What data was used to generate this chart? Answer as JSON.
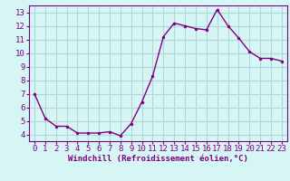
{
  "x": [
    0,
    1,
    2,
    3,
    4,
    5,
    6,
    7,
    8,
    9,
    10,
    11,
    12,
    13,
    14,
    15,
    16,
    17,
    18,
    19,
    20,
    21,
    22,
    23
  ],
  "y": [
    7.0,
    5.2,
    4.6,
    4.6,
    4.1,
    4.1,
    4.1,
    4.2,
    3.9,
    4.8,
    6.4,
    8.3,
    11.2,
    12.2,
    12.0,
    11.8,
    11.7,
    13.2,
    12.0,
    11.1,
    10.1,
    9.6,
    9.6,
    9.4
  ],
  "line_color": "#800080",
  "marker": "o",
  "marker_size": 2.0,
  "bg_color": "#d6f5f5",
  "grid_color": "#b0d8d8",
  "xlabel": "Windchill (Refroidissement éolien,°C)",
  "xlabel_fontsize": 6.5,
  "tick_fontsize": 6.5,
  "ylim": [
    3.5,
    13.5
  ],
  "yticks": [
    4,
    5,
    6,
    7,
    8,
    9,
    10,
    11,
    12,
    13
  ],
  "xticks": [
    0,
    1,
    2,
    3,
    4,
    5,
    6,
    7,
    8,
    9,
    10,
    11,
    12,
    13,
    14,
    15,
    16,
    17,
    18,
    19,
    20,
    21,
    22,
    23
  ],
  "xlim": [
    -0.5,
    23.5
  ],
  "spine_color": "#800080",
  "linewidth": 1.0
}
